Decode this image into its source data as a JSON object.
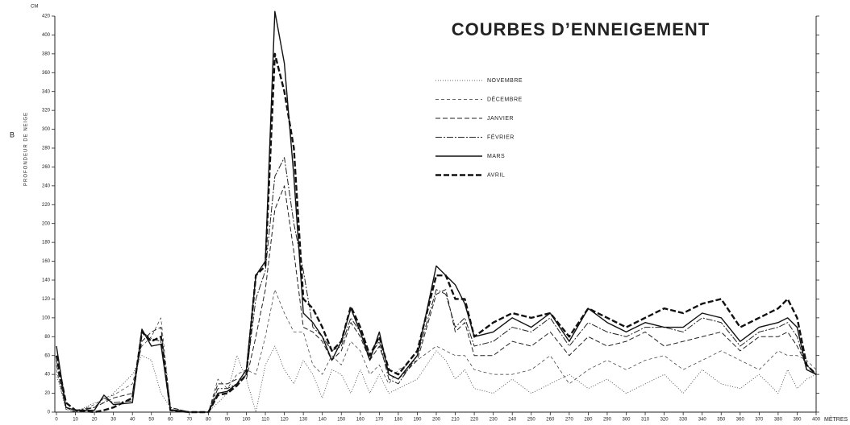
{
  "chart_data": {
    "type": "line",
    "title": "COURBES D’ENNEIGEMENT",
    "side_label": "B",
    "y_unit": "CM",
    "y_label": "PROFONDEUR DE NEIGE",
    "x_unit": "MÈTRES",
    "xlim": [
      0,
      400
    ],
    "ylim": [
      0,
      420
    ],
    "xticks": [
      0,
      10,
      20,
      30,
      40,
      50,
      60,
      70,
      80,
      90,
      100,
      110,
      120,
      130,
      140,
      150,
      160,
      170,
      180,
      190,
      200,
      210,
      220,
      230,
      240,
      250,
      260,
      270,
      280,
      290,
      300,
      310,
      320,
      330,
      340,
      350,
      360,
      370,
      380,
      390,
      400
    ],
    "yticks": [
      0,
      20,
      40,
      60,
      80,
      100,
      120,
      140,
      160,
      180,
      200,
      220,
      240,
      260,
      280,
      300,
      320,
      340,
      360,
      380,
      400,
      420
    ],
    "grid": false,
    "x": [
      0,
      5,
      10,
      20,
      25,
      30,
      40,
      45,
      50,
      55,
      60,
      70,
      80,
      85,
      90,
      95,
      100,
      105,
      110,
      115,
      120,
      125,
      130,
      135,
      140,
      145,
      150,
      155,
      160,
      165,
      170,
      175,
      180,
      190,
      200,
      205,
      210,
      215,
      220,
      230,
      240,
      250,
      260,
      270,
      280,
      290,
      300,
      310,
      320,
      330,
      340,
      350,
      360,
      370,
      380,
      385,
      390,
      395,
      400
    ],
    "series": [
      {
        "name": "NOVEMBRE",
        "color": "#333333",
        "style": "dotted",
        "values": [
          40,
          3,
          0,
          10,
          10,
          20,
          40,
          60,
          55,
          20,
          5,
          0,
          0,
          10,
          20,
          60,
          35,
          0,
          50,
          70,
          45,
          30,
          55,
          40,
          15,
          45,
          40,
          20,
          45,
          20,
          40,
          20,
          25,
          35,
          65,
          55,
          35,
          45,
          25,
          20,
          35,
          20,
          30,
          40,
          25,
          35,
          20,
          30,
          40,
          20,
          45,
          30,
          25,
          40,
          20,
          45,
          25,
          35,
          40
        ]
      },
      {
        "name": "DÉCEMBRE",
        "color": "#333333",
        "style": "fine-dashed",
        "values": [
          45,
          3,
          0,
          8,
          15,
          18,
          30,
          70,
          80,
          100,
          5,
          0,
          0,
          35,
          25,
          40,
          45,
          40,
          80,
          130,
          105,
          85,
          85,
          50,
          40,
          60,
          50,
          75,
          65,
          40,
          50,
          30,
          45,
          55,
          70,
          65,
          60,
          60,
          45,
          40,
          40,
          45,
          60,
          30,
          45,
          55,
          45,
          55,
          60,
          45,
          55,
          65,
          55,
          45,
          65,
          60,
          60,
          55,
          45
        ]
      },
      {
        "name": "JANVIER",
        "color": "#222222",
        "style": "dashed",
        "values": [
          50,
          5,
          0,
          5,
          10,
          15,
          20,
          75,
          85,
          90,
          5,
          0,
          0,
          30,
          30,
          35,
          35,
          80,
          130,
          215,
          240,
          170,
          90,
          85,
          75,
          55,
          65,
          95,
          80,
          55,
          70,
          40,
          35,
          55,
          125,
          130,
          85,
          95,
          60,
          60,
          75,
          70,
          85,
          60,
          80,
          70,
          75,
          85,
          70,
          75,
          80,
          85,
          65,
          80,
          80,
          85,
          70,
          50,
          40
        ]
      },
      {
        "name": "FÉVRIER",
        "color": "#222222",
        "style": "dash-dot",
        "values": [
          55,
          5,
          2,
          5,
          15,
          10,
          12,
          85,
          78,
          75,
          3,
          0,
          0,
          25,
          25,
          30,
          40,
          120,
          150,
          250,
          270,
          200,
          150,
          90,
          80,
          65,
          70,
          100,
          85,
          60,
          75,
          35,
          30,
          60,
          130,
          125,
          90,
          100,
          70,
          75,
          90,
          85,
          100,
          70,
          95,
          85,
          80,
          90,
          90,
          85,
          100,
          95,
          70,
          85,
          90,
          95,
          80,
          45,
          40
        ]
      },
      {
        "name": "MARS",
        "color": "#111111",
        "style": "solid",
        "values": [
          70,
          5,
          2,
          2,
          18,
          8,
          10,
          88,
          70,
          72,
          2,
          0,
          0,
          20,
          22,
          30,
          45,
          145,
          160,
          425,
          370,
          250,
          105,
          95,
          80,
          55,
          75,
          110,
          85,
          55,
          85,
          40,
          35,
          60,
          155,
          145,
          135,
          115,
          80,
          85,
          100,
          90,
          105,
          75,
          110,
          95,
          85,
          95,
          90,
          90,
          105,
          100,
          75,
          90,
          95,
          100,
          90,
          45,
          40
        ]
      },
      {
        "name": "AVRIL",
        "color": "#111111",
        "style": "thick-dashed",
        "values": [
          60,
          10,
          2,
          0,
          2,
          5,
          15,
          85,
          75,
          80,
          2,
          0,
          0,
          18,
          20,
          28,
          40,
          145,
          155,
          380,
          340,
          280,
          120,
          110,
          90,
          65,
          75,
          112,
          90,
          60,
          80,
          45,
          40,
          65,
          145,
          145,
          120,
          120,
          80,
          95,
          105,
          100,
          105,
          80,
          110,
          100,
          90,
          100,
          110,
          105,
          115,
          120,
          90,
          100,
          110,
          120,
          100,
          50,
          40
        ]
      }
    ]
  }
}
